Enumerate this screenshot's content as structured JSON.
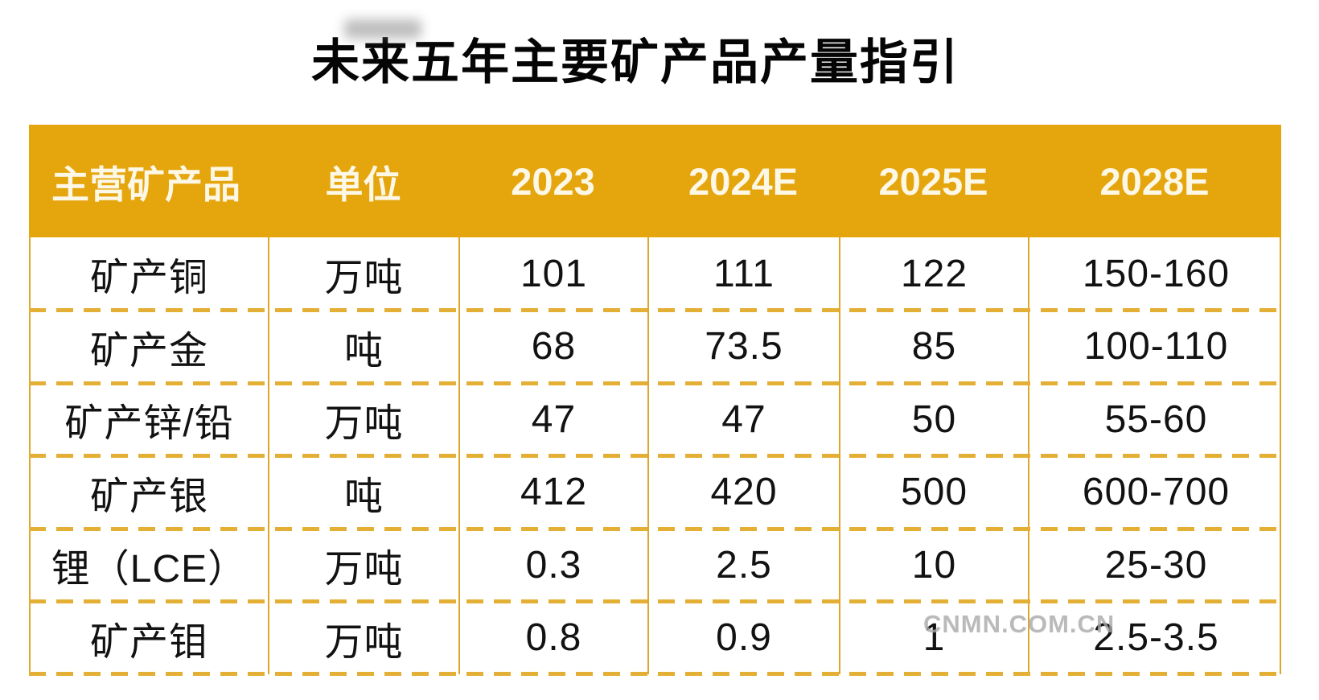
{
  "title": "未来五年主要矿产品产量指引",
  "watermark": "CNMN.COM.CN",
  "colors": {
    "header_bg": "#E5A50D",
    "solid_border": "#DFA62A",
    "dashed_border": "#E4AF35",
    "header_text": "#FDF7E6",
    "cell_text": "#121212",
    "title_text": "#050505",
    "watermark_text": "#A9A9A9"
  },
  "table": {
    "headers": [
      "主营矿产品",
      "单位",
      "2023",
      "2024E",
      "2025E",
      "2028E"
    ],
    "rows": [
      {
        "cells": [
          "矿产铜",
          "万吨",
          "101",
          "111",
          "122",
          "150-160"
        ]
      },
      {
        "cells": [
          "矿产金",
          "吨",
          "68",
          "73.5",
          "85",
          "100-110"
        ]
      },
      {
        "cells": [
          "矿产锌/铅",
          "万吨",
          "47",
          "47",
          "50",
          "55-60"
        ]
      },
      {
        "cells": [
          "矿产银",
          "吨",
          "412",
          "420",
          "500",
          "600-700"
        ]
      },
      {
        "cells": [
          "锂（LCE）",
          "万吨",
          "0.3",
          "2.5",
          "10",
          "25-30"
        ]
      },
      {
        "cells": [
          "矿产钼",
          "万吨",
          "0.8",
          "0.9",
          "1",
          "2.5-3.5"
        ]
      }
    ]
  },
  "chart_data": {
    "type": "table",
    "title": "未来五年主要矿产品产量指引",
    "columns": [
      "主营矿产品",
      "单位",
      "2023",
      "2024E",
      "2025E",
      "2028E"
    ],
    "rows": [
      [
        "矿产铜",
        "万吨",
        "101",
        "111",
        "122",
        "150-160"
      ],
      [
        "矿产金",
        "吨",
        "68",
        "73.5",
        "85",
        "100-110"
      ],
      [
        "矿产锌/铅",
        "万吨",
        "47",
        "47",
        "50",
        "55-60"
      ],
      [
        "矿产银",
        "吨",
        "412",
        "420",
        "500",
        "600-700"
      ],
      [
        "锂（LCE）",
        "万吨",
        "0.3",
        "2.5",
        "10",
        "25-30"
      ],
      [
        "矿产钼",
        "万吨",
        "0.8",
        "0.9",
        "1",
        "2.5-3.5"
      ]
    ]
  }
}
